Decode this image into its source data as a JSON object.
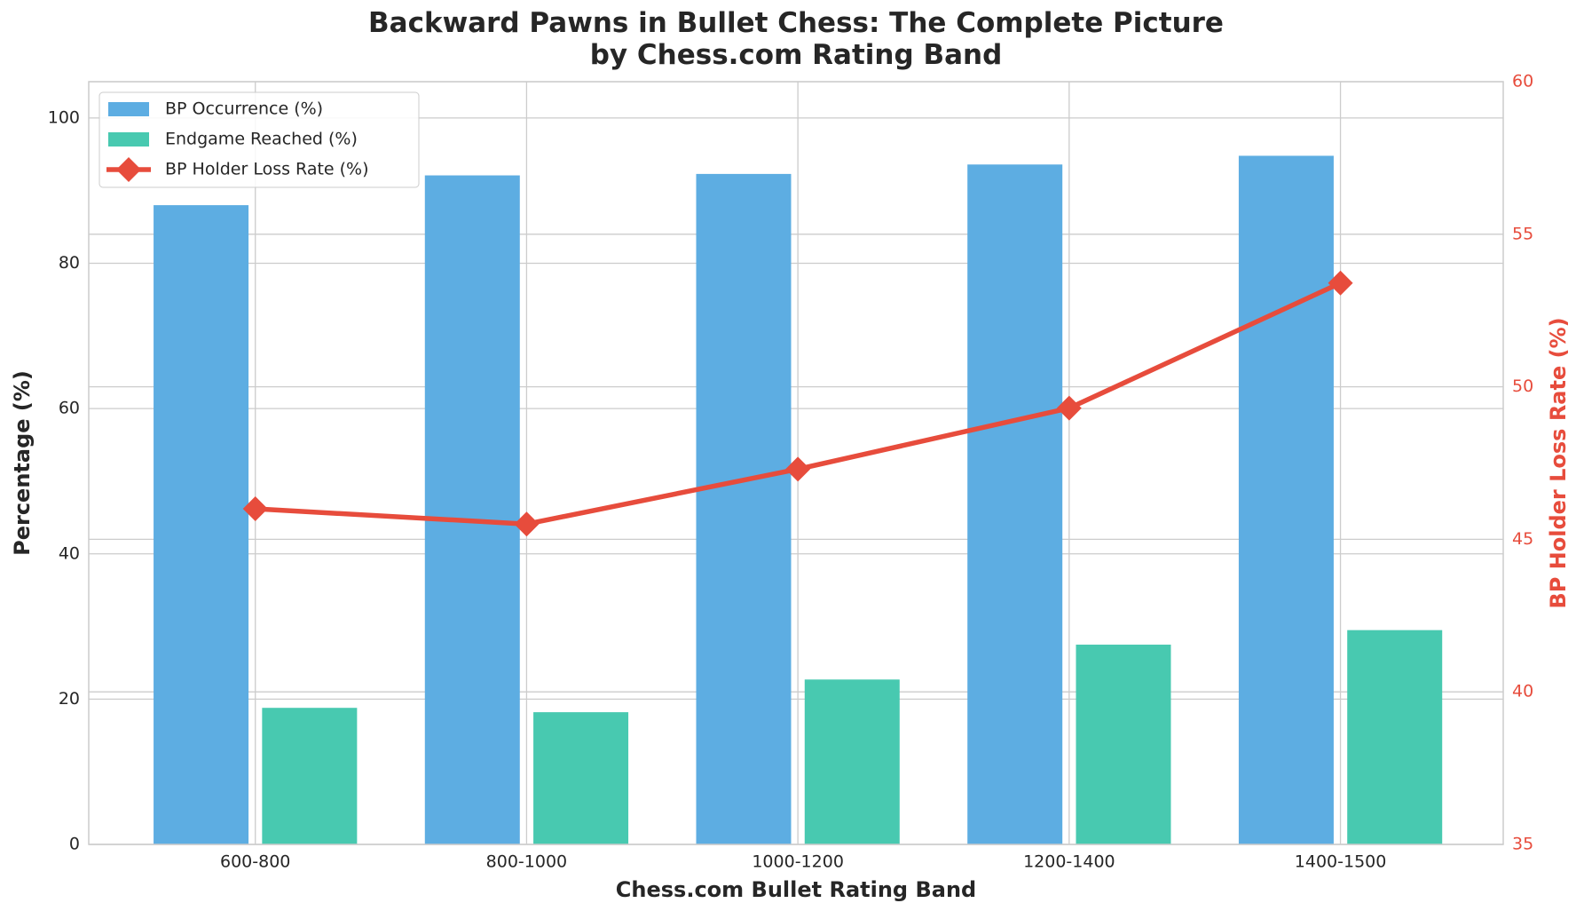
{
  "chart_data": {
    "type": "bar",
    "title": "Backward Pawns in Bullet Chess: The Complete Picture\nby Chess.com Rating Band",
    "xlabel": "Chess.com Bullet Rating Band",
    "ylabel": "Percentage (%)",
    "y2label": "BP Holder Loss Rate (%)",
    "categories": [
      "600-800",
      "800-1000",
      "1000-1200",
      "1200-1400",
      "1400-1500"
    ],
    "series": [
      {
        "name": "BP Occurrence (%)",
        "type": "bar",
        "color": "#5DADE2",
        "values": [
          88.0,
          92.1,
          92.3,
          93.6,
          94.8
        ]
      },
      {
        "name": "Endgame Reached (%)",
        "type": "bar",
        "color": "#48C9B0",
        "values": [
          18.8,
          18.2,
          22.7,
          27.5,
          29.5
        ]
      },
      {
        "name": "BP Holder Loss Rate (%)",
        "type": "line",
        "axis": "y2",
        "color": "#E74C3C",
        "values": [
          46.0,
          45.5,
          47.3,
          49.3,
          53.4
        ]
      }
    ],
    "ylim": [
      0,
      105
    ],
    "yticks": [
      0,
      20,
      40,
      60,
      80,
      100
    ],
    "y2lim": [
      35,
      60
    ],
    "y2ticks": [
      35,
      40,
      45,
      50,
      55,
      60
    ],
    "grid": true,
    "legend": "upper left"
  }
}
